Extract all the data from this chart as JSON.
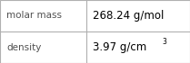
{
  "rows": [
    {
      "label": "molar mass",
      "value": "268.24 g/mol",
      "value_base": "268.24 g/mol",
      "superscript": null
    },
    {
      "label": "density",
      "value_base": "3.97 g/cm",
      "superscript": "3"
    }
  ],
  "background_color": "#ffffff",
  "border_color": "#b0b0b0",
  "label_color": "#505050",
  "value_color": "#000000",
  "label_fontsize": 7.5,
  "value_fontsize": 8.5,
  "sup_fontsize": 5.5,
  "col_split": 0.455
}
